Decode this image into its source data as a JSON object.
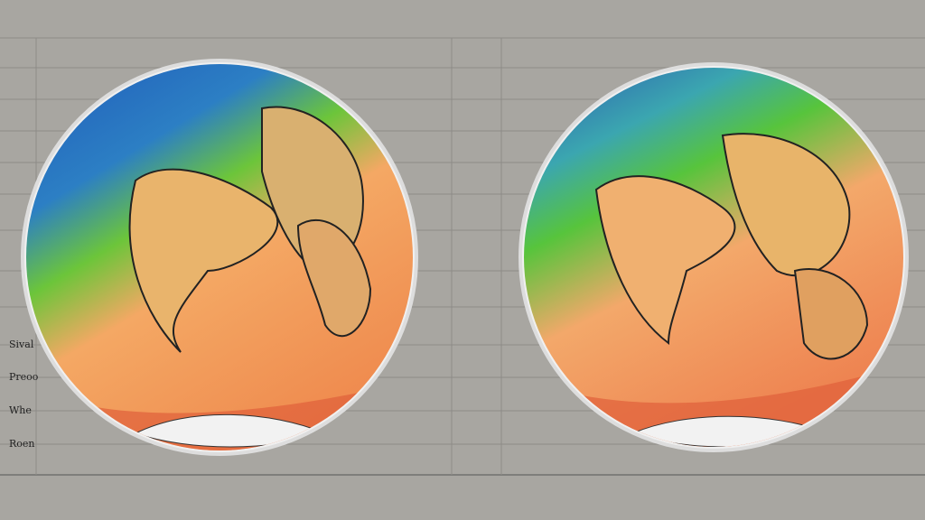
{
  "side_labels": [
    "Sival",
    "Preoo",
    "Whe",
    "Roen"
  ]
}
